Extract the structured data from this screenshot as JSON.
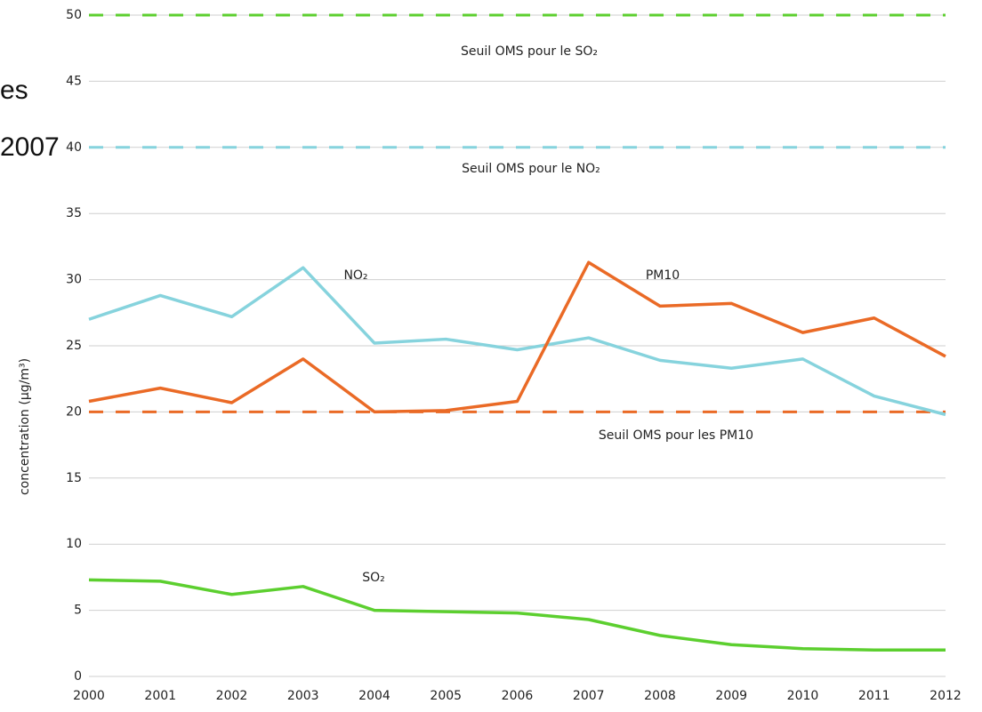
{
  "chart_data": {
    "type": "line",
    "y_label": "concentration (µg/m³)",
    "categories": [
      "2000",
      "2001",
      "2002",
      "2003",
      "2004",
      "2005",
      "2006",
      "2007",
      "2008",
      "2009",
      "2010",
      "2011",
      "2012"
    ],
    "series": [
      {
        "name": "NO₂",
        "color": "#86d3dd",
        "values": [
          27.0,
          28.8,
          27.2,
          30.9,
          25.2,
          25.5,
          24.7,
          25.6,
          23.9,
          23.3,
          24.0,
          21.2,
          19.8
        ]
      },
      {
        "name": "PM10",
        "color": "#ea6a26",
        "values": [
          20.8,
          21.8,
          20.7,
          24.0,
          20.0,
          20.1,
          20.8,
          31.3,
          28.0,
          28.2,
          26.0,
          27.1,
          24.2
        ]
      },
      {
        "name": "SO₂",
        "color": "#5ccf2f",
        "values": [
          7.3,
          7.2,
          6.2,
          6.8,
          5.0,
          4.9,
          4.8,
          4.3,
          3.1,
          2.4,
          2.1,
          2.0,
          2.0
        ]
      }
    ],
    "thresholds": [
      {
        "label": "Seuil OMS pour le SO₂",
        "value": 50,
        "color": "#5ccf2f"
      },
      {
        "label": "Seuil OMS pour le NO₂",
        "value": 40,
        "color": "#86d3dd"
      },
      {
        "label": "Seuil OMS pour les PM10",
        "value": 20,
        "color": "#ea6a26"
      }
    ],
    "ylim": [
      0,
      50
    ],
    "yticks": [
      0,
      5,
      10,
      15,
      20,
      25,
      30,
      35,
      40,
      45,
      50
    ],
    "grid": true
  },
  "background_fragments": [
    "es",
    "2007"
  ]
}
